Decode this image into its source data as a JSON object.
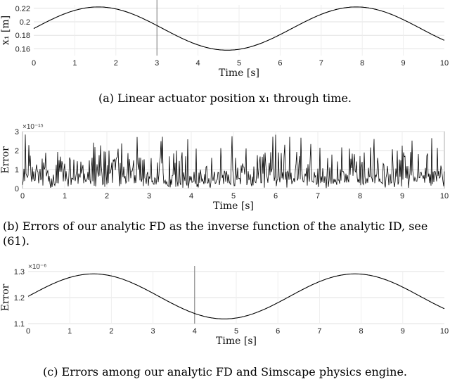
{
  "chart_data": [
    {
      "type": "line",
      "panel_label": "(a)",
      "caption": "Linear actuator position x₁ through time.",
      "xlabel": "Time [s]",
      "ylabel": "x₁ [m]",
      "exponent": "",
      "xlim": [
        0,
        10
      ],
      "ylim": [
        0.15,
        0.225
      ],
      "xticks": [
        0,
        1,
        2,
        3,
        4,
        5,
        6,
        7,
        8,
        9,
        10
      ],
      "yticks": [
        0.16,
        0.18,
        0.2,
        0.22
      ],
      "ytick_labels": [
        "0.16",
        "0.18",
        "0.2",
        "0.22"
      ],
      "marker_x": 3,
      "series": [
        {
          "formula": "sine",
          "offset": 0.19,
          "amplitude": 0.032,
          "period": 6.283
        }
      ]
    },
    {
      "type": "line",
      "panel_label": "(b)",
      "caption": "Errors of our analytic FD as the inverse function of the analytic ID, see (61).",
      "xlabel": "Time [s]",
      "ylabel": "Error",
      "exponent": "×10⁻¹⁵",
      "xlim": [
        0,
        10
      ],
      "ylim": [
        0,
        3
      ],
      "xticks": [
        0,
        1,
        2,
        3,
        4,
        5,
        6,
        7,
        8,
        9,
        10
      ],
      "yticks": [
        0,
        1,
        2,
        3
      ],
      "ytick_labels": [
        "0",
        "1",
        "2",
        "3"
      ],
      "series": [
        {
          "formula": "noise",
          "typical_max": 2.9,
          "typical_mean": 0.75
        }
      ]
    },
    {
      "type": "line",
      "panel_label": "(c)",
      "caption": "Errors among our analytic FD and Simscape physics engine.",
      "xlabel": "Time [s]",
      "ylabel": "Error",
      "exponent": "×10⁻⁶",
      "xlim": [
        0,
        10
      ],
      "ylim": [
        1.1,
        1.3
      ],
      "xticks": [
        0,
        1,
        2,
        3,
        4,
        5,
        6,
        7,
        8,
        9,
        10
      ],
      "yticks": [
        1.1,
        1.2,
        1.3
      ],
      "ytick_labels": [
        "1.1",
        "1.2",
        "1.3"
      ],
      "marker_x": 4,
      "series": [
        {
          "formula": "sine",
          "offset": 1.2045,
          "amplitude": 0.0865,
          "period": 6.283
        }
      ]
    }
  ]
}
